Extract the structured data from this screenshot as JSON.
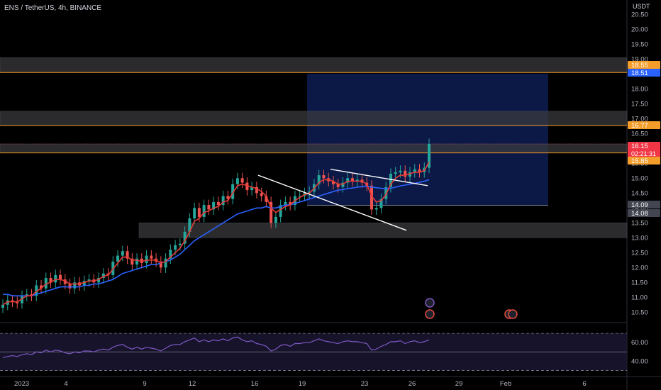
{
  "header": {
    "symbol_line": "ENS / TetherUS, 4h, BINANCE",
    "currency": "USDT"
  },
  "chart_data": {
    "type": "candlestick",
    "symbol": "ENS / TetherUS",
    "timeframe": "4h",
    "exchange": "BINANCE",
    "y_axis": {
      "unit": "USDT",
      "range": [
        10.15,
        20.65
      ],
      "ticks": [
        "20.50",
        "20.00",
        "19.50",
        "19.00",
        "18.50",
        "18.00",
        "17.50",
        "17.00",
        "16.50",
        "16.00",
        "15.50",
        "15.00",
        "14.50",
        "14.00",
        "13.50",
        "13.00",
        "12.50",
        "12.00",
        "11.50",
        "11.00",
        "10.50"
      ]
    },
    "x_axis": {
      "labels": [
        "2023",
        "4",
        "9",
        "12",
        "16",
        "19",
        "23",
        "26",
        "29",
        "Feb",
        "6"
      ]
    },
    "price_badges": [
      {
        "text": "18.55",
        "color": "#f59d2a"
      },
      {
        "text": "18.51",
        "color": "#2962ff"
      },
      {
        "text": "16.77",
        "color": "#f59d2a"
      },
      {
        "text": "16.15",
        "sub": "02:21:31",
        "color": "#f23645"
      },
      {
        "text": "15.85",
        "color": "#f59d2a"
      },
      {
        "text": "14.09",
        "color": "#434651"
      },
      {
        "text": "14.08",
        "color": "#434651"
      }
    ],
    "zones": [
      {
        "from": 18.55,
        "to": 19.05
      },
      {
        "from": 16.77,
        "to": 17.25
      },
      {
        "from": 15.85,
        "to": 16.15
      },
      {
        "from": 13.0,
        "to": 13.5
      }
    ],
    "horizontal_lines": [
      18.55,
      16.77,
      15.85,
      14.09
    ],
    "position_box": {
      "from": 14.09,
      "to": 18.51
    },
    "trendlines": [
      {
        "from": "Jan 16",
        "to": "Jan 23",
        "y1": 15.1,
        "y2": 13.25
      },
      {
        "from": "Jan 19",
        "to": "Jan 26",
        "y1": 15.3,
        "y2": 14.75
      }
    ],
    "candles_close": [
      10.75,
      10.9,
      10.85,
      10.8,
      11.05,
      11.1,
      11.05,
      11.4,
      11.3,
      11.65,
      11.5,
      11.75,
      11.6,
      11.45,
      11.3,
      11.5,
      11.4,
      11.55,
      11.6,
      11.5,
      11.65,
      11.8,
      11.75,
      12.2,
      12.4,
      12.55,
      12.3,
      12.1,
      12.3,
      12.15,
      12.4,
      12.3,
      12.2,
      12.0,
      12.3,
      12.6,
      12.75,
      12.8,
      13.2,
      13.65,
      14.0,
      13.7,
      14.1,
      13.95,
      14.2,
      14.1,
      14.4,
      14.3,
      14.8,
      15.0,
      14.85,
      14.6,
      14.7,
      14.5,
      14.4,
      14.2,
      13.5,
      13.7,
      14.1,
      14.2,
      14.1,
      14.4,
      14.4,
      14.5,
      14.55,
      14.8,
      15.1,
      15.0,
      14.9,
      14.8,
      14.7,
      14.85,
      15.0,
      14.9,
      14.95,
      14.85,
      14.75,
      13.95,
      14.0,
      14.3,
      14.7,
      15.15,
      15.2,
      15.25,
      15.05,
      15.2,
      15.3,
      15.2,
      15.35,
      16.15
    ],
    "ema_fast": [
      10.75,
      10.85,
      10.85,
      10.85,
      10.95,
      11.05,
      11.05,
      11.2,
      11.3,
      11.45,
      11.5,
      11.6,
      11.6,
      11.55,
      11.45,
      11.45,
      11.45,
      11.5,
      11.55,
      11.55,
      11.6,
      11.7,
      11.75,
      11.95,
      12.15,
      12.35,
      12.35,
      12.25,
      12.25,
      12.2,
      12.25,
      12.25,
      12.25,
      12.15,
      12.2,
      12.35,
      12.5,
      12.65,
      12.9,
      13.2,
      13.55,
      13.65,
      13.85,
      13.9,
      14.0,
      14.05,
      14.2,
      14.25,
      14.5,
      14.75,
      14.8,
      14.75,
      14.7,
      14.65,
      14.55,
      14.4,
      14.0,
      13.85,
      13.95,
      14.05,
      14.1,
      14.25,
      14.35,
      14.45,
      14.5,
      14.65,
      14.85,
      14.95,
      14.95,
      14.9,
      14.8,
      14.8,
      14.9,
      14.9,
      14.9,
      14.9,
      14.8,
      14.4,
      14.2,
      14.25,
      14.45,
      14.8,
      15.0,
      15.1,
      15.1,
      15.15,
      15.2,
      15.2,
      15.25,
      15.55
    ],
    "ema_slow": [
      11.1,
      11.1,
      11.05,
      11.05,
      11.05,
      11.05,
      11.05,
      11.1,
      11.15,
      11.2,
      11.25,
      11.3,
      11.35,
      11.35,
      11.35,
      11.35,
      11.35,
      11.4,
      11.4,
      11.45,
      11.45,
      11.5,
      11.55,
      11.6,
      11.7,
      11.8,
      11.85,
      11.9,
      11.95,
      12.0,
      12.05,
      12.1,
      12.1,
      12.15,
      12.2,
      12.25,
      12.35,
      12.45,
      12.6,
      12.75,
      12.9,
      13.0,
      13.1,
      13.2,
      13.3,
      13.4,
      13.5,
      13.6,
      13.7,
      13.8,
      13.85,
      13.9,
      13.95,
      14.0,
      14.0,
      14.05,
      14.0,
      14.0,
      14.05,
      14.1,
      14.1,
      14.15,
      14.2,
      14.25,
      14.3,
      14.35,
      14.4,
      14.45,
      14.5,
      14.55,
      14.6,
      14.62,
      14.65,
      14.67,
      14.7,
      14.72,
      14.73,
      14.7,
      14.68,
      14.66,
      14.65,
      14.66,
      14.7,
      14.74,
      14.77,
      14.8,
      14.83,
      14.86,
      14.9,
      14.95
    ],
    "events": [
      {
        "icon": "lightning-icon",
        "color": "#7e57c2"
      },
      {
        "icon": "us-flag-icon",
        "color": "#e74c3c"
      },
      {
        "icon": "us-flag-icon",
        "color": "#e74c3c"
      }
    ],
    "rsi": {
      "ticks": [
        "60.00",
        "40.00"
      ],
      "range": [
        25,
        80
      ],
      "levels": [
        70,
        50,
        30
      ],
      "values": [
        44,
        45,
        46,
        45,
        47,
        48,
        47,
        50,
        49,
        52,
        50,
        52,
        51,
        49,
        48,
        50,
        49,
        51,
        51,
        50,
        52,
        53,
        52,
        55,
        57,
        58,
        55,
        53,
        55,
        53,
        55,
        54,
        53,
        51,
        54,
        57,
        58,
        58,
        61,
        63,
        65,
        61,
        63,
        61,
        63,
        62,
        64,
        62,
        65,
        66,
        63,
        61,
        62,
        59,
        58,
        56,
        51,
        53,
        57,
        58,
        56,
        59,
        59,
        60,
        60,
        62,
        64,
        62,
        61,
        60,
        59,
        61,
        62,
        61,
        61,
        60,
        59,
        52,
        53,
        56,
        58,
        61,
        61,
        62,
        59,
        61,
        62,
        60,
        61,
        63
      ]
    }
  }
}
